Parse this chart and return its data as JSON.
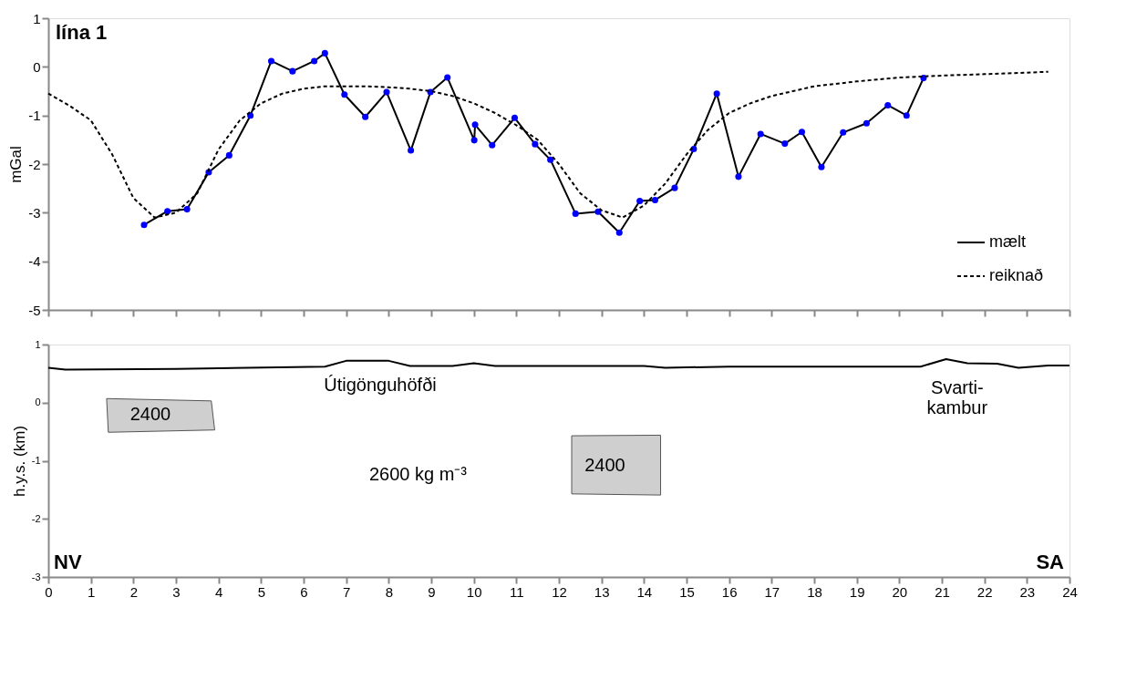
{
  "chart_data": [
    {
      "type": "line",
      "title": "lína 1",
      "ylabel": "mGal",
      "xlim": [
        0,
        24
      ],
      "xticks": [
        0,
        1,
        2,
        3,
        4,
        5,
        6,
        7,
        8,
        9,
        10,
        11,
        12,
        13,
        14,
        15,
        16,
        17,
        18,
        19,
        20,
        21,
        22,
        23,
        24
      ],
      "ylim": [
        -5,
        1
      ],
      "yticks": [
        -5,
        -4,
        -3,
        -2,
        -1,
        0,
        1
      ],
      "tick_labels": "y",
      "legend": "bottom right",
      "grid": false,
      "series": [
        {
          "name": "mælt",
          "color": "#000000",
          "marker": "circle",
          "line_style": "solid",
          "colors": [
            "#0000ff",
            "#0000ff",
            "#0000ff",
            "#0000ff",
            "#0000ff",
            "#0000ff",
            "#0000ff",
            "#0000ff",
            "#0000ff",
            "#0000ff",
            "#0000ff",
            "#0000ff",
            "#0000ff",
            "#0000ff",
            "#0000ff",
            "#0000ff",
            "#0000ff",
            "#0000ff",
            "#0000ff",
            "#0000ff",
            "#0000ff",
            "#0000ff",
            "#0000ff",
            "#0000ff",
            "#0000ff",
            "#0000ff",
            "#0000ff",
            "#0000ff",
            "#0000ff",
            "#0000ff",
            "#0000ff",
            "#0000ff",
            "#0000ff",
            "#0000ff",
            "#0000ff",
            "#0000ff",
            "#0000ff",
            "#0000ff",
            "#0000ff",
            "#0000ff"
          ],
          "x": [
            2.25,
            2.8,
            3.26,
            3.77,
            4.25,
            4.75,
            5.24,
            5.74,
            6.25,
            6.5,
            6.96,
            7.45,
            7.95,
            8.52,
            8.98,
            9.38,
            10.01,
            10.03,
            10.43,
            10.96,
            11.44,
            11.8,
            12.39,
            12.92,
            13.42,
            13.9,
            14.26,
            14.72,
            15.17,
            15.71,
            16.22,
            16.74,
            17.31,
            17.71,
            18.17,
            18.68,
            19.23,
            19.73,
            20.17,
            20.57
          ],
          "values": [
            -3.25,
            -2.97,
            -2.93,
            -2.17,
            -1.82,
            -1.0,
            0.12,
            -0.09,
            0.12,
            0.28,
            -0.57,
            -1.03,
            -0.52,
            -1.72,
            -0.52,
            -0.22,
            -1.51,
            -1.19,
            -1.61,
            -1.05,
            -1.59,
            -1.91,
            -3.02,
            -2.98,
            -3.41,
            -2.76,
            -2.74,
            -2.49,
            -1.69,
            -0.55,
            -2.26,
            -1.38,
            -1.58,
            -1.34,
            -2.06,
            -1.35,
            -1.16,
            -0.79,
            -1.0,
            -0.23
          ]
        },
        {
          "name": "reiknað",
          "color": "#000000",
          "marker": "none",
          "line_style": "dashed",
          "x": [
            0,
            0.5,
            1,
            1.5,
            2,
            2.5,
            3,
            3.5,
            4,
            4.5,
            5,
            5.5,
            6,
            6.5,
            7,
            7.5,
            8,
            8.5,
            9,
            9.5,
            10,
            10.5,
            11,
            11.5,
            12,
            12.5,
            13,
            13.5,
            14,
            14.5,
            15,
            15.5,
            16,
            16.5,
            17,
            17.5,
            18,
            19,
            20,
            21,
            22,
            23,
            23.5
          ],
          "values": [
            -0.55,
            -0.8,
            -1.1,
            -1.8,
            -2.7,
            -3.1,
            -3.0,
            -2.6,
            -1.7,
            -1.1,
            -0.75,
            -0.55,
            -0.45,
            -0.4,
            -0.4,
            -0.4,
            -0.42,
            -0.45,
            -0.5,
            -0.6,
            -0.75,
            -0.95,
            -1.2,
            -1.5,
            -2.0,
            -2.6,
            -2.95,
            -3.1,
            -2.85,
            -2.4,
            -1.8,
            -1.3,
            -0.95,
            -0.75,
            -0.6,
            -0.5,
            -0.4,
            -0.3,
            -0.22,
            -0.18,
            -0.15,
            -0.12,
            -0.1
          ]
        }
      ]
    },
    {
      "type": "line",
      "ylabel": "h.y.s. (km)",
      "xlim": [
        0,
        24
      ],
      "xticks": [
        0,
        1,
        2,
        3,
        4,
        5,
        6,
        7,
        8,
        9,
        10,
        11,
        12,
        13,
        14,
        15,
        16,
        17,
        18,
        19,
        20,
        21,
        22,
        23,
        24
      ],
      "ylim": [
        -3,
        1
      ],
      "yticks": [
        -3,
        -2,
        -1,
        0,
        1
      ],
      "grid": false,
      "series": [
        {
          "type": "line",
          "color": "#000000",
          "line_style": "solid",
          "x": [
            0,
            0.4,
            3,
            6.5,
            7,
            8,
            8.5,
            9.5,
            10,
            10.5,
            14,
            14.5,
            16,
            20.5,
            21.1,
            21.6,
            22.3,
            22.8,
            23.5,
            24
          ],
          "values": [
            0.6,
            0.57,
            0.58,
            0.62,
            0.72,
            0.72,
            0.63,
            0.63,
            0.68,
            0.63,
            0.63,
            0.6,
            0.62,
            0.62,
            0.75,
            0.68,
            0.67,
            0.6,
            0.64,
            0.64
          ]
        },
        {
          "type": "area",
          "color": "#cfcfcf",
          "x": [
            1.37,
            3.83,
            3.91,
            1.41
          ],
          "values": [
            0.07,
            0.03,
            -0.47,
            -0.51
          ]
        },
        {
          "type": "area",
          "color": "#cfcfcf",
          "x": [
            12.3,
            14.39,
            14.39,
            12.3
          ],
          "values": [
            -0.57,
            -0.56,
            -1.59,
            -1.57
          ]
        }
      ],
      "annotations": [
        "Útigönguhöfði",
        "Svarti-\nkambur",
        "2400",
        "2400",
        "2600 kg m⁻³",
        "NV",
        "SA"
      ]
    }
  ]
}
